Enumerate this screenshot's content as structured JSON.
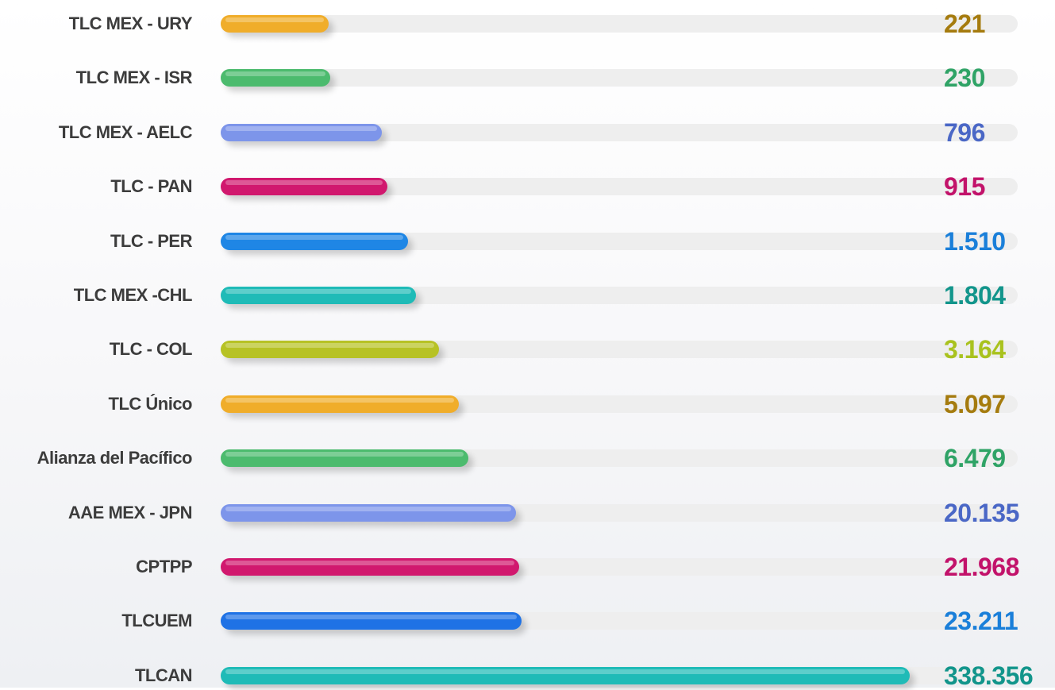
{
  "chart_data": {
    "type": "bar",
    "orientation": "horizontal",
    "categories": [
      "TLC MEX - URY",
      "TLC MEX - ISR",
      "TLC MEX - AELC",
      "TLC - PAN",
      "TLC - PER",
      "TLC MEX -CHL",
      "TLC - COL",
      "TLC Único",
      "Alianza del Pacífico",
      "AAE MEX - JPN",
      "CPTPP",
      "TLCUEM",
      "TLCAN"
    ],
    "values": [
      221,
      230,
      796,
      915,
      1510,
      1804,
      3164,
      5097,
      6479,
      20135,
      21968,
      23211,
      338356
    ],
    "value_labels": [
      "221",
      "230",
      "796",
      "915",
      "1.510",
      "1.804",
      "3.164",
      "5.097",
      "6.479",
      "20.135",
      "21.968",
      "23.211",
      "338.356"
    ],
    "colors": [
      "#f0ad2a",
      "#4cbb6e",
      "#7d95ea",
      "#d1186e",
      "#1f86e5",
      "#1fbbb7",
      "#b7c225",
      "#f0ad2a",
      "#4cbb6e",
      "#7d95ea",
      "#d1186e",
      "#1f72e5",
      "#1fbbb7"
    ],
    "value_colors": [
      "#a57b0e",
      "#2fa366",
      "#4a67c6",
      "#c2126a",
      "#1a7fd9",
      "#12958b",
      "#a9c21e",
      "#a57b0e",
      "#2fa366",
      "#4a67c6",
      "#c2126a",
      "#1a7fd9",
      "#12958b"
    ],
    "xlabel": "",
    "ylabel": "",
    "grid": false,
    "legend": "none"
  }
}
